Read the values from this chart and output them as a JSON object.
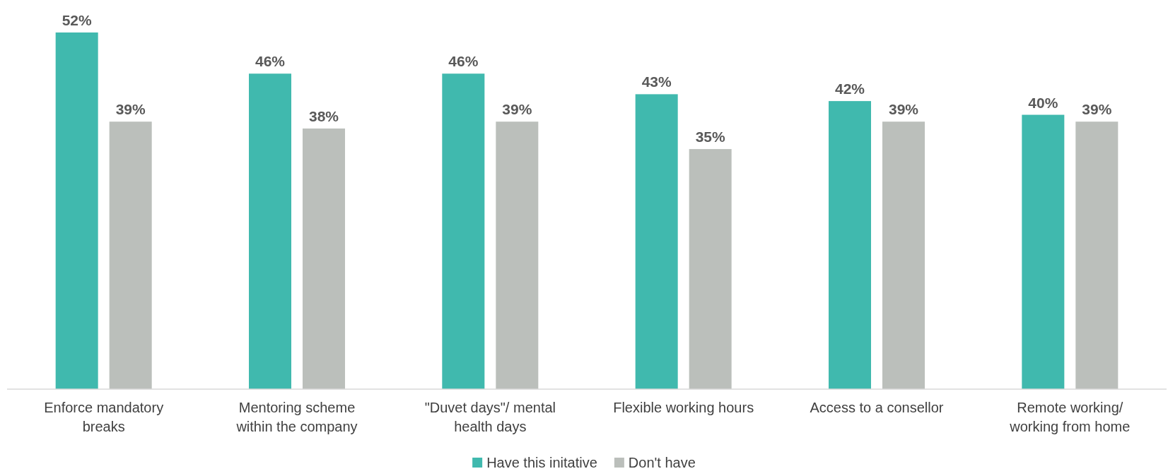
{
  "chart_data": {
    "type": "bar",
    "categories": [
      "Enforce mandatory breaks",
      "Mentoring scheme within the company",
      "\"Duvet days\"/ mental health days",
      "Flexible working hours",
      "Access to a consellor",
      "Remote working/ working from home"
    ],
    "series": [
      {
        "name": "Have this initative",
        "color": "#40b9ae",
        "values": [
          52,
          46,
          46,
          43,
          42,
          40
        ],
        "value_labels": [
          "52%",
          "46%",
          "46%",
          "43%",
          "42%",
          "40%"
        ]
      },
      {
        "name": "Don't have",
        "color": "#bbbfbb",
        "values": [
          39,
          38,
          39,
          35,
          39,
          39
        ],
        "value_labels": [
          "39%",
          "38%",
          "39%",
          "35%",
          "39%",
          "39%"
        ]
      }
    ],
    "legend": "bottom"
  }
}
